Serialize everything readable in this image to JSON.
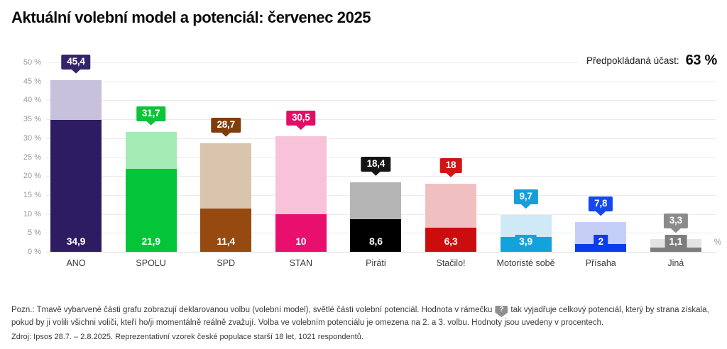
{
  "title": "Aktuální volební model a potenciál: červenec 2025",
  "turnout": {
    "label": "Předpokládaná účast:",
    "value": "63 %"
  },
  "axis": {
    "y_ticks": [
      "50 %",
      "45 %",
      "40 %",
      "35 %",
      "30 %",
      "25 %",
      "20 %",
      "15 %",
      "10 %",
      "5 %",
      "0 %"
    ],
    "unit": "%"
  },
  "chart_data": {
    "type": "bar",
    "stacked": true,
    "title": "Aktuální volební model a potenciál: červenec 2025",
    "categories": [
      "ANO",
      "SPOLU",
      "SPD",
      "STAN",
      "Piráti",
      "Stačilo!",
      "Motoristé sobě",
      "Přísaha",
      "Jiná"
    ],
    "series": [
      {
        "name": "Volební model (tmavá část, deklarovaná volba)",
        "values": [
          34.9,
          21.9,
          11.4,
          10,
          8.6,
          6.3,
          3.9,
          2,
          1.1
        ]
      },
      {
        "name": "Volební potenciál (světlá část, celkový potenciál)",
        "values": [
          45.4,
          31.7,
          28.7,
          30.5,
          18.4,
          18,
          9.7,
          7.8,
          3.3
        ]
      }
    ],
    "xlabel": "",
    "ylabel": "",
    "unit": "%",
    "ylim": [
      0,
      50
    ],
    "ytick_step": 5,
    "grid": true,
    "legend": false
  },
  "parties": [
    {
      "name": "ANO",
      "model_label": "34,9",
      "potential_label": "45,4",
      "model": 34.9,
      "potential": 45.4,
      "color_dark": "#2e1c62",
      "color_light": "#c7c1db",
      "color_badge": "#34246b"
    },
    {
      "name": "SPOLU",
      "model_label": "21,9",
      "potential_label": "31,7",
      "model": 21.9,
      "potential": 31.7,
      "color_dark": "#04c437",
      "color_light": "#a5ebb5",
      "color_badge": "#0cc437"
    },
    {
      "name": "SPD",
      "model_label": "11,4",
      "potential_label": "28,7",
      "model": 11.4,
      "potential": 28.7,
      "color_dark": "#964a10",
      "color_light": "#d9c4ae",
      "color_badge": "#7f3d0b"
    },
    {
      "name": "STAN",
      "model_label": "10",
      "potential_label": "30,5",
      "model": 10,
      "potential": 30.5,
      "color_dark": "#e90f6e",
      "color_light": "#f8c2d8",
      "color_badge": "#e20f68"
    },
    {
      "name": "Piráti",
      "model_label": "8,6",
      "potential_label": "18,4",
      "model": 8.6,
      "potential": 18.4,
      "color_dark": "#000000",
      "color_light": "#b5b5b5",
      "color_badge": "#141414"
    },
    {
      "name": "Stačilo!",
      "model_label": "6,3",
      "potential_label": "18",
      "model": 6.3,
      "potential": 18,
      "color_dark": "#cc0d0d",
      "color_light": "#f0c0c0",
      "color_badge": "#d01313"
    },
    {
      "name": "Motoristé sobě",
      "model_label": "3,9",
      "potential_label": "9,7",
      "model": 3.9,
      "potential": 9.7,
      "color_dark": "#12a3dc",
      "color_light": "#cfeaf6",
      "color_badge": "#13a0d9"
    },
    {
      "name": "Přísaha",
      "model_label": "2",
      "potential_label": "7,8",
      "model": 2,
      "potential": 7.8,
      "color_dark": "#0a3cec",
      "color_light": "#c5cef7",
      "color_badge": "#1547ef"
    },
    {
      "name": "Jiná",
      "model_label": "1,1",
      "potential_label": "3,3",
      "model": 1.1,
      "potential": 3.3,
      "color_dark": "#7d7d7d",
      "color_light": "#e4e4e4",
      "color_badge": "#8b8b8b"
    }
  ],
  "note": {
    "part1": "Pozn.: Tmavě vybarvené části grafu zobrazují deklarovanou volbu (volební model), světlé části volební potenciál. Hodnota v rámečku",
    "icon": "?",
    "part2": "tak vyjadřuje celkový potenciál, který by strana získala, pokud by ji volili všichni voliči, kteří ho/ji momentálně reálně zvažují. Volba ve volebním potenciálu je omezena na 2. a 3. volbu. Hodnoty jsou uvedeny v procentech."
  },
  "source": "Zdroj: Ipsos 28.7. – 2.8.2025. Reprezentativní vzorek české populace starší 18 let, 1021 respondentů."
}
